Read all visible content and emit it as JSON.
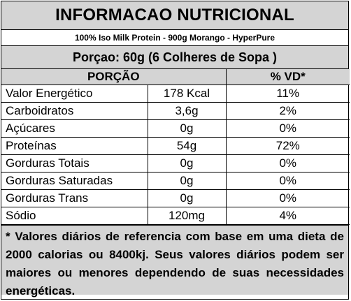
{
  "title": "INFORMACAO NUTRICIONAL",
  "product": "100% Iso Milk Protein - 900g Morango - HyperPure",
  "portion": "Porçao: 60g (6 Colheres de Sopa )",
  "table": {
    "header_portion": "PORÇÃO",
    "header_vd": "% VD*",
    "rows": [
      {
        "name": "Valor Energético",
        "qty": "178 Kcal",
        "vd": "11%"
      },
      {
        "name": "Carboidratos",
        "qty": "3,6g",
        "vd": "2%"
      },
      {
        "name": "Açúcares",
        "qty": "0g",
        "vd": "0%"
      },
      {
        "name": "Proteínas",
        "qty": "54g",
        "vd": "72%"
      },
      {
        "name": "Gorduras Totais",
        "qty": "0g",
        "vd": "0%"
      },
      {
        "name": "Gorduras Saturadas",
        "qty": "0g",
        "vd": "0%"
      },
      {
        "name": "Gorduras Trans",
        "qty": "0g",
        "vd": "0%"
      },
      {
        "name": "Sódio",
        "qty": "120mg",
        "vd": "4%"
      }
    ]
  },
  "footnote": "* Valores diários de referencia com base em uma dieta de 2000 calorias ou 8400kj. Seus valores diários podem ser maiores ou menores dependendo de suas necessidades energéticas."
}
